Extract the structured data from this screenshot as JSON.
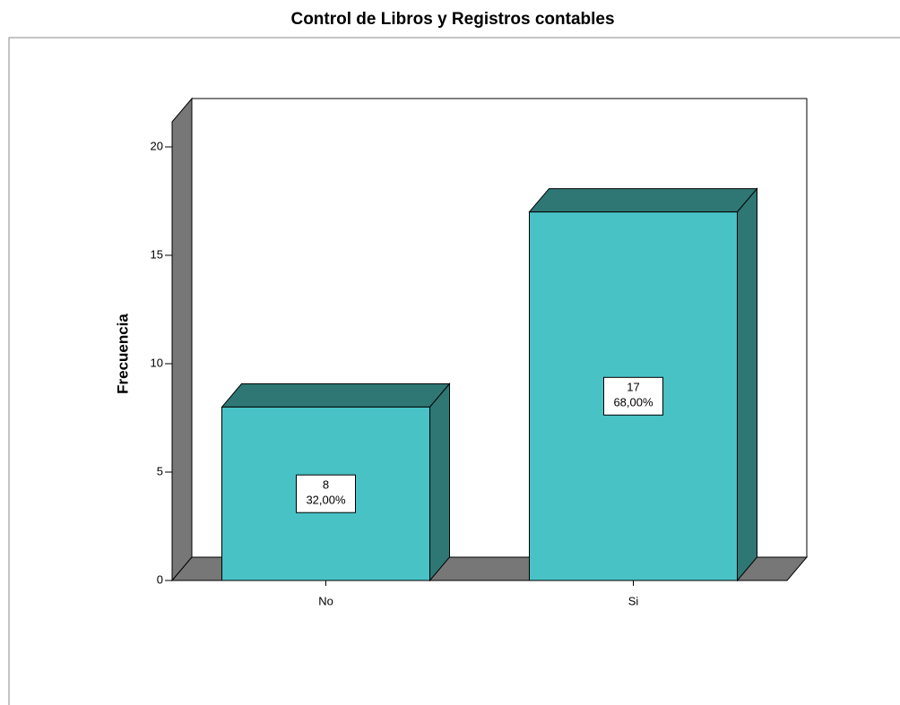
{
  "chart_data": {
    "type": "bar3d",
    "title": "Control de Libros y Registros contables",
    "y_label": "Frecuencia",
    "categories": [
      "No",
      "Si"
    ],
    "values": [
      8,
      17
    ],
    "percent_labels": [
      "32,00%",
      "68,00%"
    ],
    "color": "#48c2c5",
    "shade_color": "#2e7775",
    "wall_color": "#777777",
    "ylim": [
      0,
      20
    ],
    "yticks": [
      0,
      5,
      10,
      15,
      20
    ]
  }
}
